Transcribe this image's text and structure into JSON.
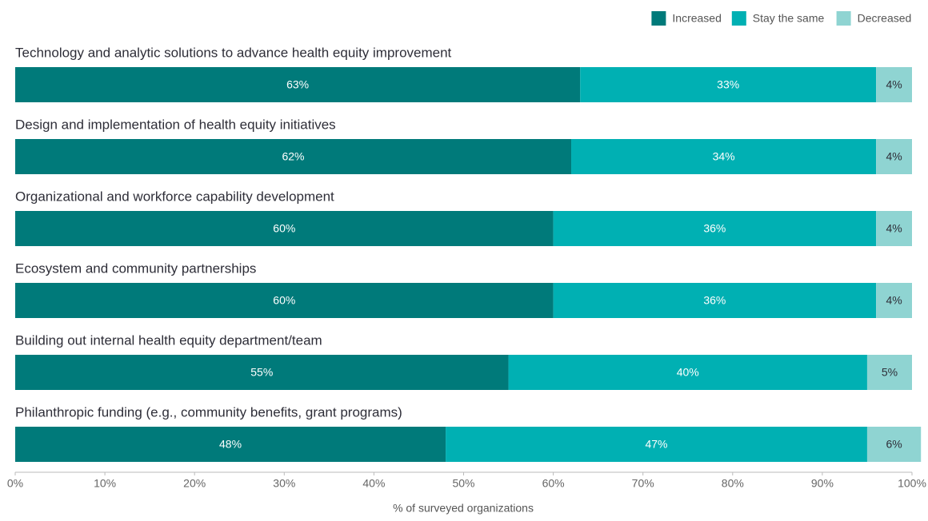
{
  "chart_data": {
    "type": "bar",
    "orientation": "horizontal",
    "stacked": true,
    "categories": [
      "Technology and analytic solutions to advance health equity improvement",
      "Design and implementation of health equity initiatives",
      "Organizational and workforce capability development",
      "Ecosystem and community partnerships",
      "Building out internal health equity department/team",
      "Philanthropic funding (e.g., community benefits, grant programs)"
    ],
    "series": [
      {
        "name": "Increased",
        "color": "#007a7a",
        "values": [
          63,
          62,
          60,
          60,
          55,
          48
        ],
        "value_labels": [
          "63%",
          "62%",
          "60%",
          "60%",
          "55%",
          "48%"
        ]
      },
      {
        "name": "Stay the same",
        "color": "#00b0b3",
        "values": [
          33,
          34,
          36,
          36,
          40,
          47
        ],
        "value_labels": [
          "33%",
          "34%",
          "36%",
          "36%",
          "40%",
          "47%"
        ]
      },
      {
        "name": "Decreased",
        "color": "#8fd4d2",
        "values": [
          4,
          4,
          4,
          4,
          5,
          6
        ],
        "value_labels": [
          "4%",
          "4%",
          "4%",
          "4%",
          "5%",
          "6%"
        ]
      }
    ],
    "xlabel": "% of surveyed organizations",
    "xlim": [
      0,
      100
    ],
    "xticks": [
      {
        "value": 0,
        "label": "0%"
      },
      {
        "value": 10,
        "label": "10%"
      },
      {
        "value": 20,
        "label": "20%"
      },
      {
        "value": 30,
        "label": "30%"
      },
      {
        "value": 40,
        "label": "40%"
      },
      {
        "value": 50,
        "label": "50%"
      },
      {
        "value": 60,
        "label": "60%"
      },
      {
        "value": 70,
        "label": "70%"
      },
      {
        "value": 80,
        "label": "80%"
      },
      {
        "value": 90,
        "label": "90%"
      },
      {
        "value": 100,
        "label": "100%"
      }
    ],
    "legend": "top-right"
  }
}
